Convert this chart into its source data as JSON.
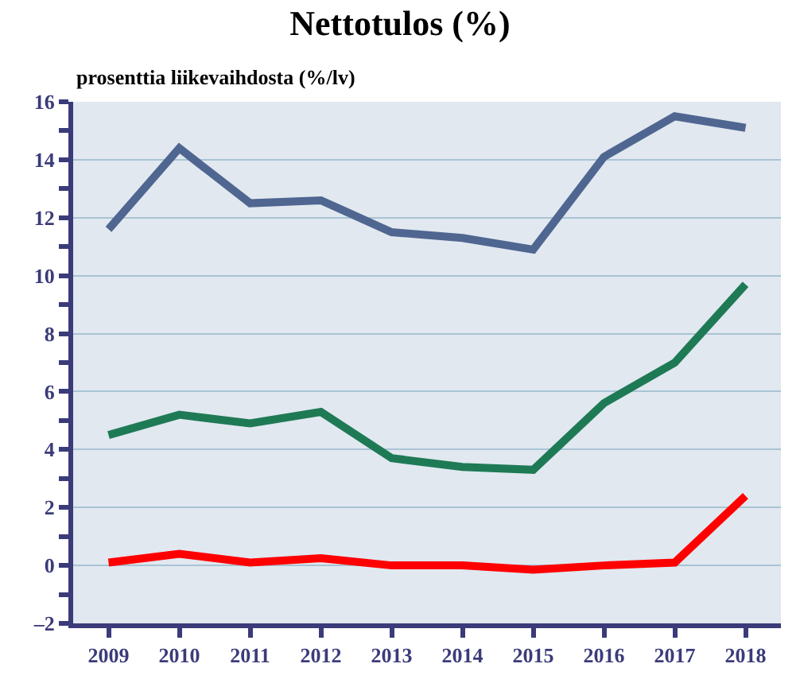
{
  "chart_data": {
    "type": "line",
    "title": "Nettotulos (%)",
    "subtitle": "prosenttia liikevaihdosta (%/lv)",
    "categories": [
      "2009",
      "2010",
      "2011",
      "2012",
      "2013",
      "2014",
      "2015",
      "2016",
      "2017",
      "2018"
    ],
    "series": [
      {
        "color": "#4f6690",
        "values": [
          11.6,
          14.4,
          12.5,
          12.6,
          11.5,
          11.3,
          10.9,
          14.1,
          15.5,
          15.1
        ]
      },
      {
        "color": "#1e7a55",
        "values": [
          4.5,
          5.2,
          4.9,
          5.3,
          3.7,
          3.4,
          3.3,
          5.6,
          7.0,
          9.7
        ]
      },
      {
        "color": "#ff0000",
        "values": [
          0.1,
          0.4,
          0.1,
          0.25,
          0.0,
          0.0,
          -0.15,
          0.0,
          0.1,
          2.4
        ]
      }
    ],
    "ylim": [
      -2,
      16
    ],
    "yticks": [
      {
        "value": -2,
        "label": "–2"
      },
      {
        "value": -1,
        "label": null
      },
      0,
      {
        "value": 1,
        "label": null
      },
      2,
      {
        "value": 3,
        "label": null
      },
      4,
      {
        "value": 5,
        "label": null
      },
      6,
      {
        "value": 7,
        "label": null
      },
      8,
      {
        "value": 9,
        "label": null
      },
      10,
      {
        "value": 11,
        "label": null
      },
      12,
      {
        "value": 13,
        "label": null
      },
      14,
      {
        "value": 15,
        "label": null
      },
      16
    ],
    "grid": "y",
    "marker": "none",
    "line_style": "solid"
  }
}
